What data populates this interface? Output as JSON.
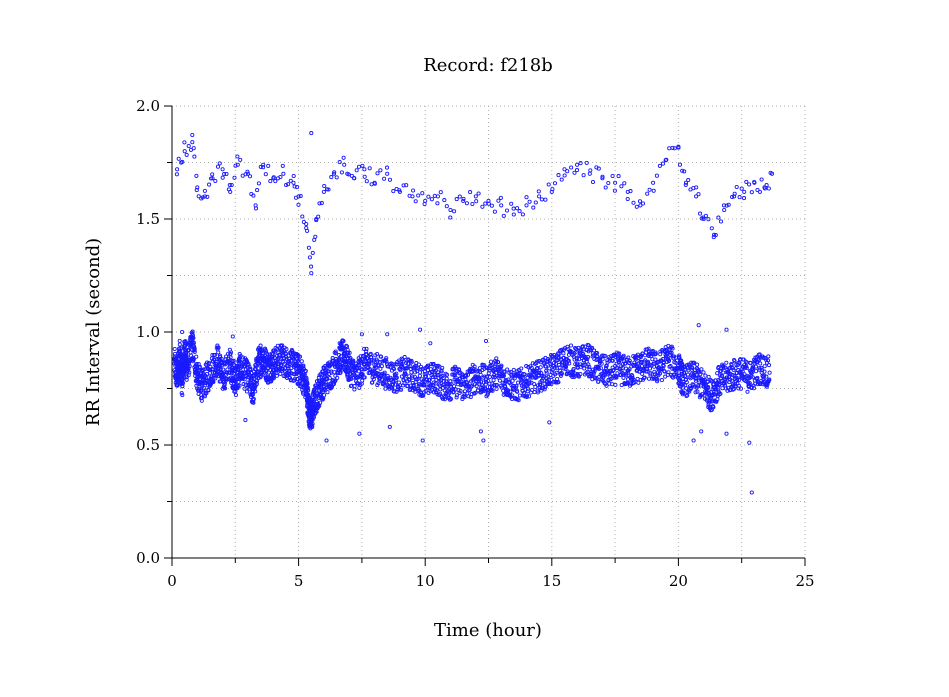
{
  "chart_data": {
    "type": "scatter",
    "title": "Record:  f218b",
    "xlabel": "Time (hour)",
    "ylabel": "RR Interval (second)",
    "xlim": [
      0,
      25
    ],
    "ylim": [
      0,
      2
    ],
    "x_ticks": [
      "0",
      "5",
      "10",
      "15",
      "20",
      "25"
    ],
    "y_ticks": [
      "0.0",
      "0.5",
      "1.0",
      "1.5",
      "2.0"
    ],
    "x_minor_ticks": [
      2.5,
      7.5,
      12.5,
      17.5,
      22.5
    ],
    "y_minor_ticks": [
      0.25,
      0.75,
      1.25,
      1.75
    ],
    "grid": true,
    "marker": "open-circle",
    "color": "#1a1aff",
    "series": [
      {
        "values_main_band": [
          [
            0.1,
            0.86
          ],
          [
            0.2,
            0.8
          ],
          [
            0.3,
            0.9
          ],
          [
            0.4,
            0.78
          ],
          [
            0.5,
            0.92
          ],
          [
            0.6,
            0.84
          ],
          [
            0.8,
            0.95
          ],
          [
            1.0,
            0.8
          ],
          [
            1.2,
            0.76
          ],
          [
            1.5,
            0.82
          ],
          [
            1.8,
            0.88
          ],
          [
            2.0,
            0.8
          ],
          [
            2.3,
            0.86
          ],
          [
            2.5,
            0.78
          ],
          [
            2.7,
            0.84
          ],
          [
            3.0,
            0.8
          ],
          [
            3.2,
            0.74
          ],
          [
            3.4,
            0.86
          ],
          [
            3.6,
            0.88
          ],
          [
            3.8,
            0.84
          ],
          [
            4.0,
            0.86
          ],
          [
            4.3,
            0.88
          ],
          [
            4.6,
            0.86
          ],
          [
            4.9,
            0.84
          ],
          [
            5.1,
            0.82
          ],
          [
            5.3,
            0.76
          ],
          [
            5.4,
            0.66
          ],
          [
            5.5,
            0.62
          ],
          [
            5.6,
            0.68
          ],
          [
            5.8,
            0.74
          ],
          [
            6.0,
            0.78
          ],
          [
            6.3,
            0.82
          ],
          [
            6.6,
            0.88
          ],
          [
            6.8,
            0.9
          ],
          [
            7.0,
            0.84
          ],
          [
            7.3,
            0.8
          ],
          [
            7.6,
            0.86
          ],
          [
            8.0,
            0.84
          ],
          [
            8.4,
            0.82
          ],
          [
            8.8,
            0.8
          ],
          [
            9.2,
            0.82
          ],
          [
            9.6,
            0.8
          ],
          [
            10.0,
            0.78
          ],
          [
            10.4,
            0.8
          ],
          [
            10.8,
            0.76
          ],
          [
            11.2,
            0.78
          ],
          [
            11.6,
            0.76
          ],
          [
            12.0,
            0.8
          ],
          [
            12.4,
            0.78
          ],
          [
            12.8,
            0.82
          ],
          [
            13.2,
            0.78
          ],
          [
            13.6,
            0.76
          ],
          [
            14.0,
            0.78
          ],
          [
            14.4,
            0.8
          ],
          [
            14.8,
            0.82
          ],
          [
            15.2,
            0.84
          ],
          [
            15.6,
            0.88
          ],
          [
            16.0,
            0.86
          ],
          [
            16.4,
            0.88
          ],
          [
            16.8,
            0.84
          ],
          [
            17.2,
            0.82
          ],
          [
            17.6,
            0.84
          ],
          [
            18.0,
            0.82
          ],
          [
            18.4,
            0.84
          ],
          [
            18.8,
            0.86
          ],
          [
            19.2,
            0.84
          ],
          [
            19.6,
            0.88
          ],
          [
            20.0,
            0.84
          ],
          [
            20.2,
            0.78
          ],
          [
            20.6,
            0.8
          ],
          [
            21.0,
            0.76
          ],
          [
            21.3,
            0.72
          ],
          [
            21.6,
            0.78
          ],
          [
            22.0,
            0.8
          ],
          [
            22.4,
            0.82
          ],
          [
            22.8,
            0.8
          ],
          [
            23.2,
            0.84
          ],
          [
            23.6,
            0.82
          ]
        ],
        "values_upper_band": [
          [
            0.2,
            1.72
          ],
          [
            0.5,
            1.8
          ],
          [
            0.8,
            1.84
          ],
          [
            1.0,
            1.64
          ],
          [
            1.3,
            1.6
          ],
          [
            1.6,
            1.68
          ],
          [
            2.0,
            1.72
          ],
          [
            2.3,
            1.62
          ],
          [
            2.6,
            1.74
          ],
          [
            3.0,
            1.7
          ],
          [
            3.3,
            1.56
          ],
          [
            3.6,
            1.74
          ],
          [
            4.0,
            1.68
          ],
          [
            4.4,
            1.7
          ],
          [
            4.8,
            1.66
          ],
          [
            5.0,
            1.6
          ],
          [
            5.3,
            1.46
          ],
          [
            5.5,
            1.26
          ],
          [
            5.7,
            1.5
          ],
          [
            6.0,
            1.62
          ],
          [
            6.4,
            1.7
          ],
          [
            6.8,
            1.74
          ],
          [
            7.2,
            1.68
          ],
          [
            7.6,
            1.72
          ],
          [
            8.0,
            1.66
          ],
          [
            8.5,
            1.7
          ],
          [
            9.0,
            1.62
          ],
          [
            9.5,
            1.6
          ],
          [
            10.0,
            1.58
          ],
          [
            10.5,
            1.6
          ],
          [
            11.0,
            1.54
          ],
          [
            11.5,
            1.58
          ],
          [
            12.0,
            1.6
          ],
          [
            12.5,
            1.58
          ],
          [
            13.0,
            1.56
          ],
          [
            13.5,
            1.52
          ],
          [
            14.0,
            1.56
          ],
          [
            14.5,
            1.6
          ],
          [
            15.0,
            1.62
          ],
          [
            15.5,
            1.72
          ],
          [
            16.0,
            1.74
          ],
          [
            16.5,
            1.7
          ],
          [
            17.0,
            1.68
          ],
          [
            17.5,
            1.66
          ],
          [
            18.0,
            1.62
          ],
          [
            18.5,
            1.56
          ],
          [
            19.0,
            1.66
          ],
          [
            19.5,
            1.76
          ],
          [
            20.0,
            1.82
          ],
          [
            20.3,
            1.66
          ],
          [
            20.7,
            1.6
          ],
          [
            21.0,
            1.5
          ],
          [
            21.4,
            1.42
          ],
          [
            21.8,
            1.56
          ],
          [
            22.2,
            1.6
          ],
          [
            22.6,
            1.62
          ],
          [
            23.0,
            1.66
          ],
          [
            23.4,
            1.64
          ],
          [
            23.7,
            1.7
          ]
        ],
        "outliers": [
          [
            0.4,
            1.0
          ],
          [
            2.4,
            0.98
          ],
          [
            2.9,
            0.61
          ],
          [
            3.5,
            0.94
          ],
          [
            5.5,
            1.88
          ],
          [
            6.1,
            0.52
          ],
          [
            7.4,
            0.55
          ],
          [
            7.5,
            0.99
          ],
          [
            8.5,
            0.99
          ],
          [
            8.6,
            0.58
          ],
          [
            9.8,
            1.01
          ],
          [
            9.9,
            0.52
          ],
          [
            10.2,
            0.95
          ],
          [
            12.3,
            0.52
          ],
          [
            12.2,
            0.56
          ],
          [
            12.4,
            0.96
          ],
          [
            14.9,
            0.6
          ],
          [
            20.6,
            0.52
          ],
          [
            20.8,
            1.03
          ],
          [
            20.9,
            0.56
          ],
          [
            21.9,
            0.55
          ],
          [
            21.9,
            1.01
          ],
          [
            22.8,
            0.51
          ],
          [
            22.9,
            0.29
          ]
        ]
      }
    ]
  }
}
